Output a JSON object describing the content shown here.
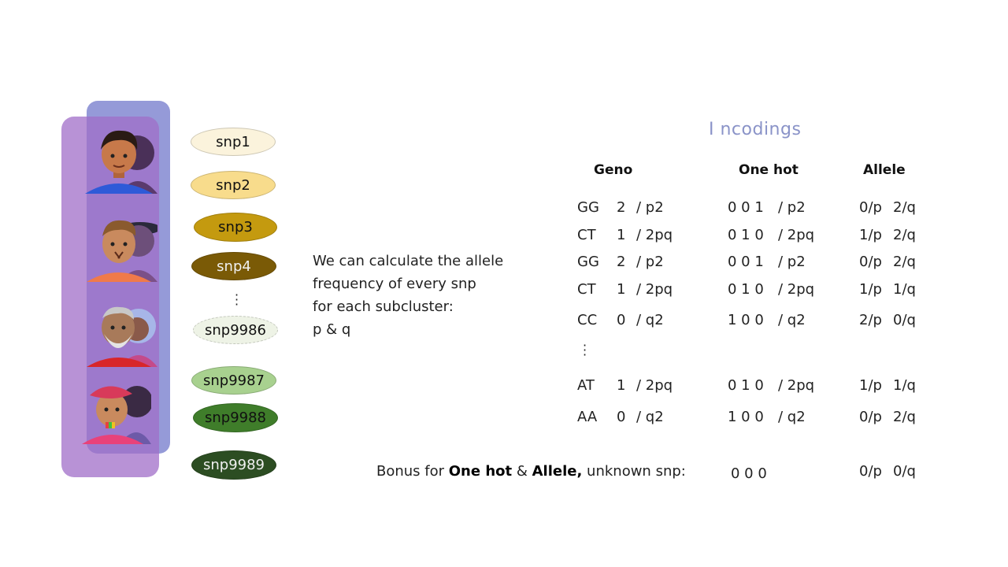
{
  "snps": [
    {
      "label": "snp1",
      "color": "#fbf3dc"
    },
    {
      "label": "snp2",
      "color": "#f8dc8c"
    },
    {
      "label": "snp3",
      "color": "#c49a0f"
    },
    {
      "label": "snp4",
      "color": "#7a5a06"
    },
    {
      "label": "snp9986",
      "color": "#eef3e6"
    },
    {
      "label": "snp9987",
      "color": "#a8d18f"
    },
    {
      "label": "snp9988",
      "color": "#3f7d2a"
    },
    {
      "label": "snp9989",
      "color": "#2c4d22"
    }
  ],
  "description": {
    "line1": "We can calculate the allele",
    "line2": "frequency of every snp",
    "line3": "for each subcluster:",
    "line4": "p & q"
  },
  "encodings": {
    "title": "I ncodings",
    "headers": {
      "geno": "Geno",
      "one_hot": "One hot",
      "allele": "Allele"
    },
    "rows": [
      {
        "geno": "GG",
        "count": "2",
        "geno_freq": "/ p2",
        "one_hot": "0 0 1",
        "oh_freq": "/ p2",
        "allele_p": "0/p",
        "allele_q": "2/q"
      },
      {
        "geno": "CT",
        "count": "1",
        "geno_freq": "/ 2pq",
        "one_hot": "0 1 0",
        "oh_freq": "/ 2pq",
        "allele_p": "1/p",
        "allele_q": "2/q"
      },
      {
        "geno": "GG",
        "count": "2",
        "geno_freq": "/ p2",
        "one_hot": "0 0 1",
        "oh_freq": "/ p2",
        "allele_p": "0/p",
        "allele_q": "2/q"
      },
      {
        "geno": "CT",
        "count": "1",
        "geno_freq": "/ 2pq",
        "one_hot": "0 1 0",
        "oh_freq": "/ 2pq",
        "allele_p": "1/p",
        "allele_q": "1/q"
      },
      {
        "geno": "CC",
        "count": "0",
        "geno_freq": "/ q2",
        "one_hot": "1 0 0",
        "oh_freq": "/ q2",
        "allele_p": "2/p",
        "allele_q": "0/q"
      },
      {
        "geno": "AT",
        "count": "1",
        "geno_freq": "/ 2pq",
        "one_hot": "0 1 0",
        "oh_freq": "/ 2pq",
        "allele_p": "1/p",
        "allele_q": "1/q"
      },
      {
        "geno": "AA",
        "count": "0",
        "geno_freq": "/ q2",
        "one_hot": "1 0 0",
        "oh_freq": "/ q2",
        "allele_p": "0/p",
        "allele_q": "2/q"
      }
    ]
  },
  "bonus": {
    "prefix": "Bonus for ",
    "one_hot": "One hot",
    "amp": " & ",
    "allele": "Allele,",
    "suffix": " unknown snp:",
    "one_hot_value": "0 0 0",
    "allele_p": "0/p",
    "allele_q": "0/q"
  }
}
